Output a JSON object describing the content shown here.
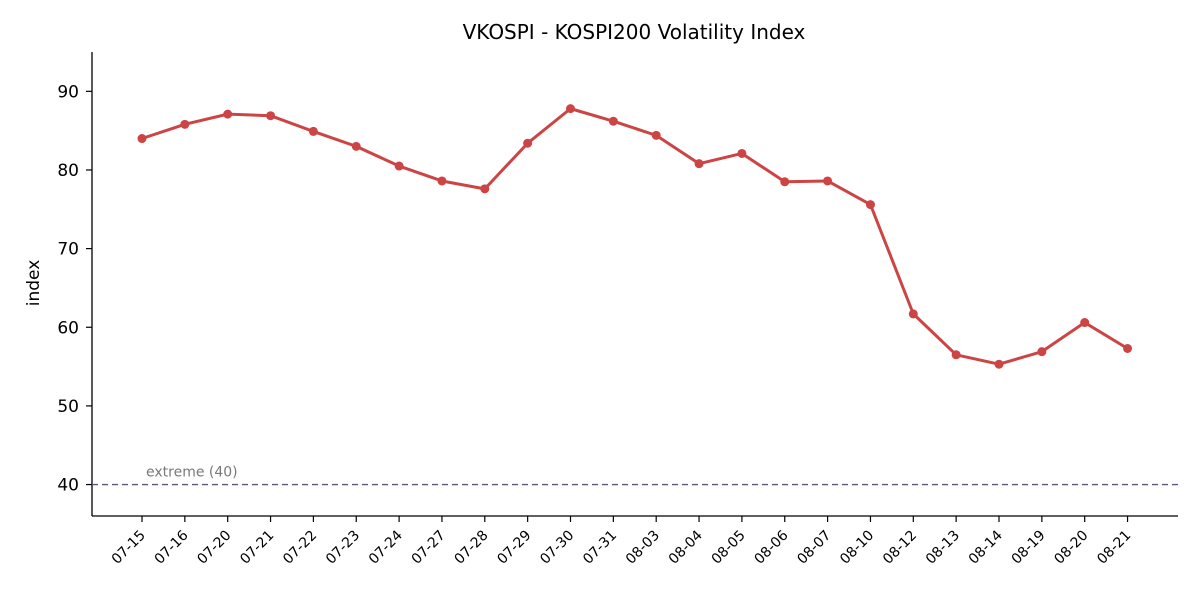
{
  "chart_data": {
    "type": "line",
    "title": "VKOSPI - KOSPI200 Volatility Index",
    "xlabel": "",
    "ylabel": "index",
    "ylim": [
      36,
      95
    ],
    "yticks": [
      40,
      50,
      60,
      70,
      80,
      90
    ],
    "grid": false,
    "categories": [
      "07-15",
      "07-16",
      "07-20",
      "07-21",
      "07-22",
      "07-23",
      "07-24",
      "07-27",
      "07-28",
      "07-29",
      "07-30",
      "07-31",
      "08-03",
      "08-04",
      "08-05",
      "08-06",
      "08-07",
      "08-10",
      "08-12",
      "08-13",
      "08-14",
      "08-19",
      "08-20",
      "08-21"
    ],
    "series": [
      {
        "color": "#cc4444",
        "values": [
          84.0,
          85.8,
          87.1,
          86.9,
          84.9,
          83.0,
          80.5,
          78.6,
          77.6,
          83.4,
          87.8,
          86.2,
          84.4,
          80.8,
          82.1,
          78.5,
          78.6,
          75.6,
          61.7,
          56.5,
          55.3,
          56.9,
          60.6,
          57.3
        ]
      }
    ],
    "reference_line": {
      "value": 40,
      "label": "extreme (40)",
      "color": "#5a5a7a",
      "style": "dashed"
    }
  }
}
